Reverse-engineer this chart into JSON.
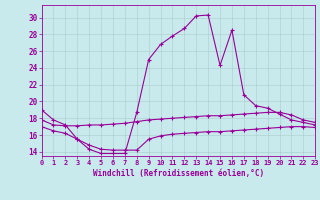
{
  "xlabel": "Windchill (Refroidissement éolien,°C)",
  "background_color": "#c8eaec",
  "line_color": "#990099",
  "grid_color": "#aacccc",
  "x_ticks": [
    0,
    1,
    2,
    3,
    4,
    5,
    6,
    7,
    8,
    9,
    10,
    11,
    12,
    13,
    14,
    15,
    16,
    17,
    18,
    19,
    20,
    21,
    22,
    23
  ],
  "y_ticks": [
    14,
    16,
    18,
    20,
    22,
    24,
    26,
    28,
    30
  ],
  "ylim": [
    13.5,
    31.5
  ],
  "xlim": [
    0,
    23
  ],
  "curve1_x": [
    0,
    1,
    2,
    3,
    4,
    5,
    6,
    7,
    8,
    9,
    10,
    11,
    12,
    13,
    14,
    15,
    16,
    17,
    18,
    19,
    20,
    21,
    22,
    23
  ],
  "curve1_y": [
    19.0,
    17.8,
    17.2,
    15.5,
    14.3,
    13.8,
    13.8,
    13.8,
    18.7,
    25.0,
    26.8,
    27.8,
    28.7,
    30.2,
    30.3,
    24.3,
    28.5,
    20.8,
    19.5,
    19.2,
    18.5,
    17.8,
    17.5,
    17.2
  ],
  "curve2_x": [
    0,
    1,
    2,
    3,
    4,
    5,
    6,
    7,
    8,
    9,
    10,
    11,
    12,
    13,
    14,
    15,
    16,
    17,
    18,
    19,
    20,
    21,
    22,
    23
  ],
  "curve2_y": [
    17.8,
    17.2,
    17.1,
    17.1,
    17.2,
    17.2,
    17.3,
    17.4,
    17.6,
    17.8,
    17.9,
    18.0,
    18.1,
    18.2,
    18.3,
    18.3,
    18.4,
    18.5,
    18.6,
    18.7,
    18.7,
    18.4,
    17.8,
    17.5
  ],
  "curve3_x": [
    0,
    1,
    2,
    3,
    4,
    5,
    6,
    7,
    8,
    9,
    10,
    11,
    12,
    13,
    14,
    15,
    16,
    17,
    18,
    19,
    20,
    21,
    22,
    23
  ],
  "curve3_y": [
    17.0,
    16.5,
    16.2,
    15.5,
    14.8,
    14.3,
    14.2,
    14.2,
    14.2,
    15.5,
    15.9,
    16.1,
    16.2,
    16.3,
    16.4,
    16.4,
    16.5,
    16.6,
    16.7,
    16.8,
    16.9,
    17.0,
    17.0,
    16.9
  ]
}
